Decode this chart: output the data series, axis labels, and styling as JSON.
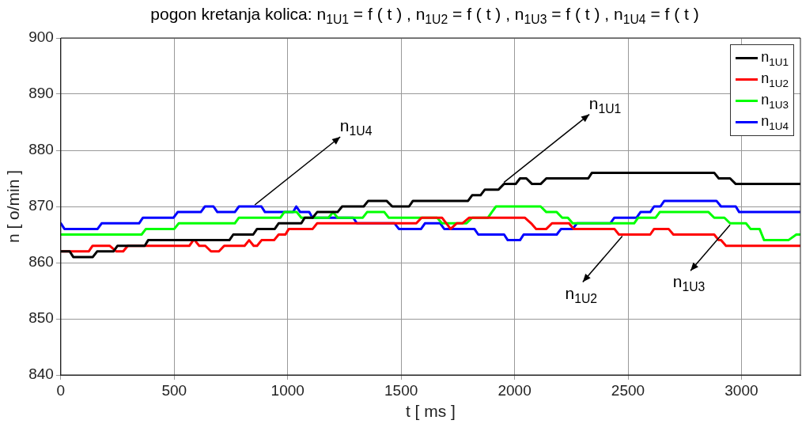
{
  "chart_data": {
    "type": "line",
    "title": "pogon kretanja kolica:  n$_{1U1}$ = f ( t ) ,  n$_{1U2}$ = f ( t ) ,  n$_{1U3}$ = f ( t ) ,  n$_{1U4}$ = f ( t )",
    "xlabel": "t [ ms ]",
    "ylabel": "n [ o/min ]",
    "xlim": [
      0,
      3260
    ],
    "xticks": [
      0,
      500,
      1000,
      1500,
      2000,
      2500,
      3000
    ],
    "ylim": [
      840,
      900
    ],
    "yticks": [
      840,
      850,
      860,
      870,
      880,
      890,
      900
    ],
    "grid": true,
    "legend": "top right",
    "marker": "none",
    "line_style": "solid",
    "annotations": [
      {
        "text": "n$_{1U4}$",
        "x": 855,
        "y": 870
      },
      {
        "text": "n$_{1U1}$",
        "x": 1953,
        "y": 874
      },
      {
        "text": "n$_{1U2}$",
        "x": 2475,
        "y": 865
      },
      {
        "text": "n$_{1U3}$",
        "x": 2950,
        "y": 867
      }
    ],
    "series": [
      {
        "name": "n$_{1U1}$",
        "color": "#000000",
        "x": [
          0,
          39,
          55,
          141,
          160,
          232,
          250,
          370,
          385,
          743,
          760,
          848,
          865,
          943,
          960,
          1060,
          1075,
          1110,
          1130,
          1220,
          1240,
          1335,
          1355,
          1436,
          1461,
          1535,
          1552,
          1795,
          1813,
          1850,
          1869,
          1929,
          1953,
          2005,
          2024,
          2052,
          2077,
          2115,
          2140,
          2325,
          2341,
          2880,
          2900,
          2950,
          2975,
          3260
        ],
        "values": [
          862,
          862,
          861,
          861,
          862,
          862,
          863,
          863,
          864,
          864,
          865,
          865,
          866,
          866,
          867,
          867,
          868,
          868,
          869,
          869,
          870,
          870,
          871,
          871,
          870,
          870,
          871,
          871,
          872,
          872,
          873,
          873,
          874,
          874,
          875,
          875,
          874,
          874,
          875,
          875,
          876,
          876,
          875,
          875,
          874,
          874
        ]
      },
      {
        "name": "n$_{1U2}$",
        "color": "#ff0000",
        "x": [
          0,
          123,
          140,
          215,
          245,
          275,
          295,
          567,
          584,
          590,
          610,
          637,
          662,
          697,
          720,
          810,
          830,
          850,
          865,
          885,
          940,
          960,
          990,
          1005,
          1110,
          1130,
          1567,
          1590,
          1680,
          1718,
          1745,
          1770,
          1800,
          2045,
          2073,
          2095,
          2140,
          2165,
          2240,
          2260,
          2440,
          2460,
          2598,
          2615,
          2679,
          2700,
          2880,
          2900,
          2910,
          2932,
          3260
        ],
        "values": [
          862,
          862,
          863,
          863,
          862,
          862,
          863,
          863,
          864,
          864,
          863,
          863,
          862,
          862,
          863,
          863,
          864,
          863,
          863,
          864,
          864,
          865,
          865,
          866,
          866,
          867,
          867,
          868,
          868,
          866,
          867,
          867,
          868,
          868,
          867,
          866,
          866,
          867,
          867,
          866,
          866,
          865,
          865,
          866,
          866,
          865,
          865,
          864,
          864,
          863,
          863
        ]
      },
      {
        "name": "n$_{1U3}$",
        "color": "#00ff00",
        "x": [
          0,
          356,
          375,
          500,
          520,
          767,
          785,
          968,
          985,
          1040,
          1060,
          1180,
          1200,
          1220,
          1331,
          1350,
          1426,
          1445,
          1659,
          1680,
          1788,
          1813,
          1883,
          1900,
          1918,
          2115,
          2140,
          2186,
          2210,
          2235,
          2256,
          2527,
          2545,
          2622,
          2640,
          2855,
          2880,
          2925,
          2950,
          3020,
          3040,
          3080,
          3090,
          3100,
          3207,
          3242,
          3260
        ],
        "values": [
          865,
          865,
          866,
          866,
          867,
          867,
          868,
          868,
          869,
          869,
          868,
          868,
          869,
          868,
          868,
          869,
          869,
          868,
          868,
          867,
          867,
          868,
          868,
          869,
          870,
          870,
          869,
          869,
          868,
          868,
          867,
          867,
          868,
          868,
          869,
          869,
          868,
          868,
          867,
          867,
          866,
          866,
          865,
          864,
          864,
          865,
          865
        ]
      },
      {
        "name": "n$_{1U4}$",
        "color": "#0000ff",
        "x": [
          0,
          16,
          162,
          180,
          345,
          362,
          497,
          515,
          617,
          635,
          673,
          690,
          767,
          785,
          884,
          900,
          1024,
          1038,
          1055,
          1095,
          1109,
          1289,
          1305,
          1471,
          1490,
          1588,
          1605,
          1672,
          1690,
          1823,
          1840,
          1954,
          1970,
          2024,
          2040,
          2186,
          2205,
          2256,
          2275,
          2422,
          2440,
          2538,
          2555,
          2598,
          2615,
          2643,
          2660,
          2890,
          2910,
          2975,
          2990,
          3260
        ],
        "values": [
          867,
          866,
          866,
          867,
          867,
          868,
          868,
          869,
          869,
          870,
          870,
          869,
          869,
          870,
          870,
          869,
          869,
          870,
          869,
          869,
          868,
          868,
          867,
          867,
          866,
          866,
          867,
          867,
          866,
          866,
          865,
          865,
          864,
          864,
          865,
          865,
          866,
          866,
          867,
          867,
          868,
          868,
          869,
          869,
          870,
          870,
          871,
          871,
          870,
          870,
          869,
          869
        ]
      }
    ]
  }
}
